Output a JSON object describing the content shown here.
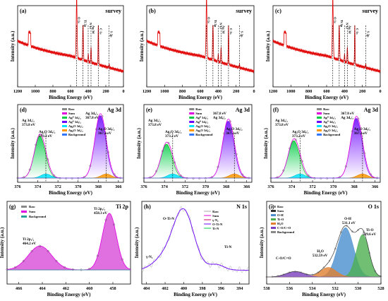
{
  "figure": {
    "axis_common": {
      "binding_energy_label": "Binding Energy (eV)",
      "intensity_label": "Intensity (a.u.)"
    }
  },
  "chart_data": [
    {
      "panel": "(a)",
      "type": "line",
      "title": "survey",
      "xlabel": "Binding Energy (eV)",
      "ylabel": "Intensity (a.u.)",
      "xticks": [
        "1200",
        "1000",
        "800",
        "600",
        "400",
        "200",
        "0"
      ],
      "xlim": [
        1200,
        0
      ],
      "color": "#e00000",
      "peak_labels": [
        "O 1s",
        "Ti 2p",
        "N 1s",
        "Ag 3d",
        "C 1s",
        "S 2p"
      ],
      "peaks_x": [
        531,
        459,
        400,
        368,
        285,
        163
      ]
    },
    {
      "panel": "(b)",
      "type": "line",
      "title": "survey",
      "xlabel": "Binding Energy (eV)",
      "ylabel": "Intensity (a.u.)",
      "xticks": [
        "1200",
        "1000",
        "800",
        "600",
        "400",
        "200",
        "0"
      ],
      "xlim": [
        1200,
        0
      ],
      "color": "#e00000",
      "peak_labels": [
        "O 1s",
        "Ti 2p",
        "N 1s",
        "Ag 3d",
        "C 1s",
        "S 2p"
      ],
      "peaks_x": [
        531,
        459,
        400,
        368,
        285,
        163
      ]
    },
    {
      "panel": "(c)",
      "type": "line",
      "title": "survey",
      "xlabel": "Binding Energy (eV)",
      "ylabel": "Intensity (a.u.)",
      "xticks": [
        "1200",
        "1000",
        "800",
        "600",
        "400",
        "200",
        "0"
      ],
      "xlim": [
        1200,
        0
      ],
      "color": "#e00000",
      "peak_labels": [
        "O 1s",
        "Ti 2p",
        "N 1s",
        "Ag 3d",
        "C 1s",
        "S 2p"
      ],
      "peaks_x": [
        531,
        459,
        400,
        368,
        285,
        163
      ]
    },
    {
      "panel": "(d)",
      "type": "line",
      "title": "Ag 3d",
      "xlabel": "Binding Energy (eV)",
      "ylabel": "Intensity (a.u.)",
      "xticks": [
        "376",
        "374",
        "372",
        "370",
        "368",
        "366"
      ],
      "xlim": [
        376,
        365.5
      ],
      "legend": [
        "Raw",
        "Sum",
        "Ag⁰ 3d₃/₂",
        "Ag⁰ 3d₅/₂",
        "Ag₂O 3d₅/₂",
        "Ag₂O 3d₃/₂",
        "Background"
      ],
      "peaks": [
        {
          "x": 373.8,
          "height": 0.62
        },
        {
          "x": 367.8,
          "height": 0.92
        }
      ],
      "annotations": [
        "Ag 3d₃/₂",
        "373.8 eV",
        "Ag 3d₅/₂",
        "367.8 eV",
        "Ag₂O 3d₃/₂",
        "373.2 eV",
        "Ag₂O 3d₅/₂",
        "367.2 eV"
      ]
    },
    {
      "panel": "(e)",
      "type": "line",
      "title": "Ag 3d",
      "xlabel": "Binding Energy (eV)",
      "ylabel": "Intensity (a.u.)",
      "xticks": [
        "376",
        "374",
        "372",
        "370",
        "368",
        "366"
      ],
      "xlim": [
        376,
        365.5
      ],
      "legend": [
        "Raw",
        "Sum",
        "Ag⁰ 3d₃/₂",
        "Ag⁰ 3d₅/₂",
        "Ag₂O 3d₅/₂",
        "Ag₂O 3d₃/₂",
        "Background"
      ],
      "peaks": [
        {
          "x": 373.8,
          "height": 0.5
        },
        {
          "x": 367.8,
          "height": 0.84
        }
      ],
      "annotations": [
        "Ag 3d₃/₂",
        "373.8 eV",
        "367.8 eV",
        "Ag 3d₅/₂",
        "Ag₂O 3d₃/₂",
        "373.2 eV",
        "Ag₂O 3d₅/₂",
        "367.2 eV"
      ]
    },
    {
      "panel": "(f)",
      "type": "line",
      "title": "Ag 3d",
      "xlabel": "Binding Energy (eV)",
      "ylabel": "Intensity (a.u.)",
      "xticks": [
        "376",
        "374",
        "372",
        "370",
        "368",
        "366"
      ],
      "xlim": [
        376,
        365.5
      ],
      "legend": [
        "Raw",
        "Sum",
        "Ag⁰ 3d₃/₂",
        "Ag⁰ 3d₅/₂",
        "Ag₂O 3d₅/₂",
        "Ag₂O 3d₃/₂",
        "Background"
      ],
      "peaks": [
        {
          "x": 373.8,
          "height": 0.55
        },
        {
          "x": 367.8,
          "height": 0.88
        }
      ],
      "annotations": [
        "Ag 3d₃/₂",
        "373.8 eV",
        "367.8 eV",
        "Ag 3d₅/₂",
        "Ag₂O 3d₃/₂",
        "373.2 eV",
        "Ag₂O 3d₅/₂",
        "367.2 eV"
      ]
    },
    {
      "panel": "(g)",
      "type": "line",
      "title": "Ti 2p",
      "xlabel": "Binding Energy (eV)",
      "ylabel": "Intensity (a.u.)",
      "xticks": [
        "466",
        "464",
        "462",
        "460",
        "458"
      ],
      "xlim": [
        467,
        456.5
      ],
      "legend": [
        "Raw",
        "Sum",
        "Background"
      ],
      "peaks": [
        {
          "x": 464.2,
          "height": 0.38
        },
        {
          "x": 458.3,
          "height": 0.9
        }
      ],
      "annotations": [
        "Ti 2p₁/₂",
        "464.2 eV",
        "Ti 2p₃/₂",
        "458.3 eV"
      ]
    },
    {
      "panel": "(h)",
      "type": "line",
      "title": "N 1s",
      "xlabel": "Binding Energy (eV)",
      "ylabel": "Intensity (a.u.)",
      "xticks": [
        "404",
        "402",
        "400",
        "398",
        "396",
        "394"
      ],
      "xlim": [
        404.5,
        393
      ],
      "legend": [
        "Raw",
        "Sum",
        "γ-N₂",
        "O-Ti-N",
        "Ti-N"
      ],
      "peaks": [
        {
          "x": 400.0,
          "height": 0.85
        }
      ],
      "annotations": [
        "O-Ti-N",
        "γ-N₂",
        "Ti-N"
      ]
    },
    {
      "panel": "(i)",
      "type": "line",
      "title": "O 1s",
      "xlabel": "Binding Energy (eV)",
      "ylabel": "Intensity (a.u.)",
      "xticks": [
        "538",
        "536",
        "534",
        "532",
        "530",
        "528"
      ],
      "xlim": [
        538,
        528
      ],
      "legend": [
        "Raw",
        "Sum",
        "O-H",
        "Ti-O",
        "H₂O",
        "C-O/C=O",
        "Background"
      ],
      "peaks": [
        {
          "x": 531.1,
          "height": 0.72
        },
        {
          "x": 529.6,
          "height": 0.62
        },
        {
          "x": 532.6,
          "height": 0.14
        },
        {
          "x": 535.5,
          "height": 0.08
        }
      ],
      "annotations": [
        "O-H",
        "531.1 eV",
        "Ti-O",
        "529.6 eV",
        "H₂O",
        "532.59 eV",
        "C-O/C=O"
      ]
    }
  ]
}
